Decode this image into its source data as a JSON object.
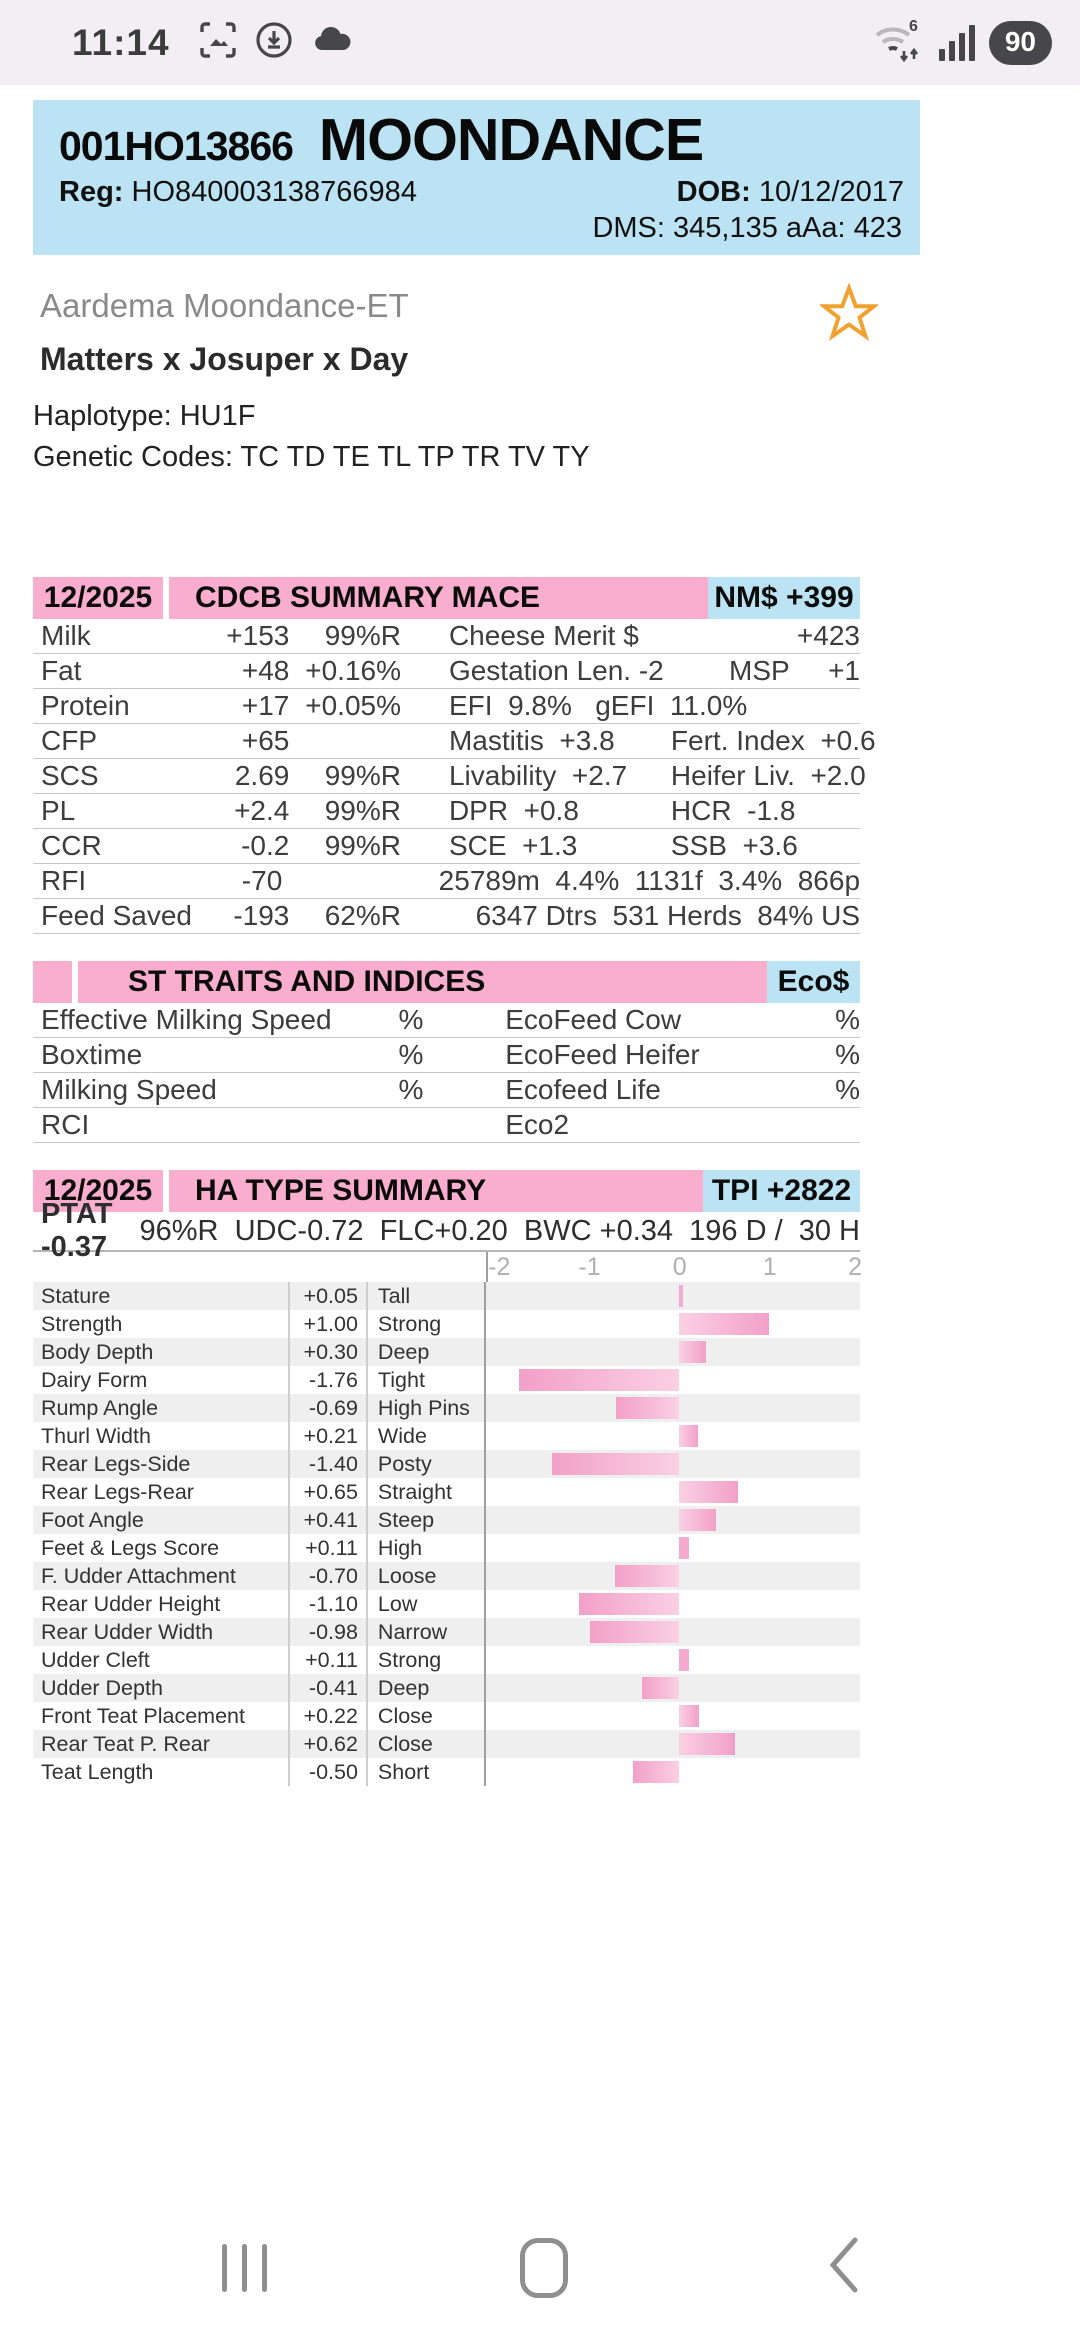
{
  "status_bar": {
    "time": "11:14",
    "battery_percent": "90"
  },
  "header": {
    "id": "001HO13866",
    "name": "MOONDANCE",
    "reg_label": "Reg:",
    "reg_value": "HO840003138766984",
    "dob_label": "DOB:",
    "dob_value": "10/12/2017",
    "dms_line": "DMS: 345,135  aAa: 423"
  },
  "pedigree": {
    "full_name": "Aardema Moondance-ET",
    "sire_stack": "Matters x Josuper x Day",
    "haplotype": "Haplotype: HU1F",
    "genetic_codes": "Genetic Codes: TC TD TE TL TP TR TV TY"
  },
  "cdcb": {
    "date": "12/2025",
    "title": "CDCB SUMMARY MACE",
    "badge": "NM$ +399",
    "rows": [
      {
        "label": "Milk",
        "val": "+153",
        "rel": "99%R",
        "r1": "Cheese Merit $",
        "r2": "+423",
        "mode": "end"
      },
      {
        "label": "Fat",
        "val": "+48",
        "rel": "+0.16%",
        "r1": "Gestation Len. -2",
        "r2": "MSP     +1",
        "mode": "end"
      },
      {
        "label": "Protein",
        "val": "+17",
        "rel": "+0.05%",
        "r1": "EFI  9.8%   gEFI  11.0%",
        "r2": "",
        "mode": "none"
      },
      {
        "label": "CFP",
        "val": "+65",
        "rel": "",
        "r1": "Mastitis  +3.8",
        "r2": "Fert. Index  +0.6",
        "mode": "col"
      },
      {
        "label": "SCS",
        "val": "2.69",
        "rel": "99%R",
        "r1": "Livability  +2.7",
        "r2": "Heifer Liv.  +2.0",
        "mode": "col"
      },
      {
        "label": "PL",
        "val": "+2.4",
        "rel": "99%R",
        "r1": "DPR  +0.8",
        "r2": "HCR  -1.8",
        "mode": "col"
      },
      {
        "label": "CCR",
        "val": "-0.2",
        "rel": "99%R",
        "r1": "SCE  +1.3",
        "r2": "SSB  +3.6",
        "mode": "col"
      },
      {
        "label": "RFI",
        "val": "-70",
        "rel": "",
        "r1": "",
        "r2": "25789m  4.4%  1131f  3.4%  866p",
        "mode": "end"
      },
      {
        "label": "Feed Saved",
        "val": "-193",
        "rel": "62%R",
        "r1": "",
        "r2": "6347 Dtrs  531 Herds  84% US",
        "mode": "end"
      }
    ]
  },
  "st": {
    "title": "ST TRAITS AND INDICES",
    "badge": "Eco$",
    "rows": [
      {
        "left": "Effective Milking Speed",
        "left_pct": "%",
        "right": "EcoFeed Cow",
        "right_pct": "%"
      },
      {
        "left": "Boxtime",
        "left_pct": "%",
        "right": "EcoFeed Heifer",
        "right_pct": "%"
      },
      {
        "left": "Milking Speed",
        "left_pct": "%",
        "right": "Ecofeed Life",
        "right_pct": "%"
      },
      {
        "left": "RCI",
        "left_pct": "",
        "right": "Eco2",
        "right_pct": ""
      }
    ]
  },
  "ha": {
    "date": "12/2025",
    "title": "HA TYPE SUMMARY",
    "badge": "TPI +2822",
    "ptat_bold": "PTAT -0.37",
    "ptat_rest": "96%R  UDC-0.72  FLC+0.20  BWC +0.34  196 D /  30 H"
  },
  "chart_data": {
    "type": "bar",
    "orientation": "horizontal",
    "xlim": [
      -2,
      2
    ],
    "axis_ticks": [
      "-2",
      "-1",
      "0",
      "1",
      "2"
    ],
    "grid": "left-edge-line-only",
    "rows": [
      {
        "trait": "Stature",
        "value_label": "+0.05",
        "value": 0.05,
        "adjective": "Tall"
      },
      {
        "trait": "Strength",
        "value_label": "+1.00",
        "value": 1.0,
        "adjective": "Strong"
      },
      {
        "trait": "Body Depth",
        "value_label": "+0.30",
        "value": 0.3,
        "adjective": "Deep"
      },
      {
        "trait": "Dairy Form",
        "value_label": "-1.76",
        "value": -1.76,
        "adjective": "Tight"
      },
      {
        "trait": "Rump Angle",
        "value_label": "-0.69",
        "value": -0.69,
        "adjective": "High Pins"
      },
      {
        "trait": "Thurl Width",
        "value_label": "+0.21",
        "value": 0.21,
        "adjective": "Wide"
      },
      {
        "trait": "Rear Legs-Side",
        "value_label": "-1.40",
        "value": -1.4,
        "adjective": "Posty"
      },
      {
        "trait": "Rear Legs-Rear",
        "value_label": "+0.65",
        "value": 0.65,
        "adjective": "Straight"
      },
      {
        "trait": "Foot Angle",
        "value_label": "+0.41",
        "value": 0.41,
        "adjective": "Steep"
      },
      {
        "trait": "Feet & Legs Score",
        "value_label": "+0.11",
        "value": 0.11,
        "adjective": "High"
      },
      {
        "trait": "F. Udder Attachment",
        "value_label": "-0.70",
        "value": -0.7,
        "adjective": "Loose"
      },
      {
        "trait": "Rear Udder Height",
        "value_label": "-1.10",
        "value": -1.1,
        "adjective": "Low"
      },
      {
        "trait": "Rear Udder Width",
        "value_label": "-0.98",
        "value": -0.98,
        "adjective": "Narrow"
      },
      {
        "trait": "Udder Cleft",
        "value_label": "+0.11",
        "value": 0.11,
        "adjective": "Strong"
      },
      {
        "trait": "Udder Depth",
        "value_label": "-0.41",
        "value": -0.41,
        "adjective": "Deep"
      },
      {
        "trait": "Front Teat Placement",
        "value_label": "+0.22",
        "value": 0.22,
        "adjective": "Close"
      },
      {
        "trait": "Rear Teat P. Rear",
        "value_label": "+0.62",
        "value": 0.62,
        "adjective": "Close"
      },
      {
        "trait": "Teat Length",
        "value_label": "-0.50",
        "value": -0.5,
        "adjective": "Short"
      }
    ]
  },
  "colors": {
    "header_pink": "#F9AECD",
    "header_blue": "#BCE3F3",
    "bar_dark": "#F2A0C8",
    "bar_light": "#FAD0E3",
    "bar_solid": "#F4A9CE",
    "star_orange": "#F0A12F"
  }
}
